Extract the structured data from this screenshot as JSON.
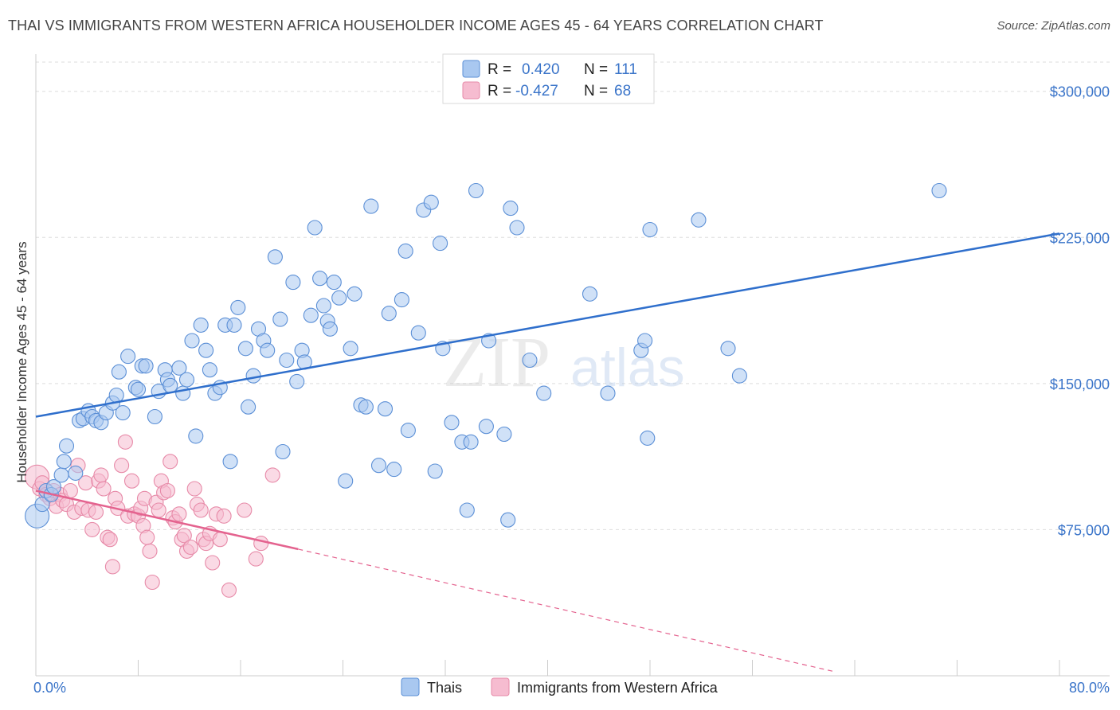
{
  "title": "THAI VS IMMIGRANTS FROM WESTERN AFRICA HOUSEHOLDER INCOME AGES 45 - 64 YEARS CORRELATION CHART",
  "source": "Source: ZipAtlas.com",
  "watermark": {
    "zip": "ZIP",
    "atlas": "atlas"
  },
  "colors": {
    "thais_fill": "#a9c8f0",
    "thais_stroke": "#5b8fd6",
    "thais_line": "#2f6fcc",
    "wafrica_fill": "#f6bcd0",
    "wafrica_stroke": "#e78aa8",
    "wafrica_line": "#e4638f",
    "tick_label": "#3a74c9",
    "grid": "#dddddd"
  },
  "legend": {
    "r_label": "R =",
    "n_label": "N =",
    "rows": [
      {
        "r": "0.420",
        "n": "111"
      },
      {
        "r": "-0.427",
        "n": "68"
      }
    ]
  },
  "bottom_legend": [
    "Thais",
    "Immigrants from Western Africa"
  ],
  "chart_data": {
    "type": "scatter",
    "title": "THAI VS IMMIGRANTS FROM WESTERN AFRICA HOUSEHOLDER INCOME AGES 45 - 64 YEARS CORRELATION CHART",
    "xlabel": "",
    "ylabel": "Householder Income Ages 45 - 64 years",
    "xlim": [
      0,
      80
    ],
    "ylim": [
      0,
      315000
    ],
    "x_tick_labels": [
      "0.0%",
      "80.0%"
    ],
    "y_ticks": [
      75000,
      150000,
      225000,
      300000
    ],
    "y_tick_labels": [
      "$75,000",
      "$150,000",
      "$225,000",
      "$300,000"
    ],
    "grid": "horizontal dashed",
    "legend_position": "top-center",
    "series": [
      {
        "name": "Thais",
        "trend": {
          "x": [
            0,
            80
          ],
          "y": [
            133000,
            227000
          ]
        },
        "points": [
          [
            0.1,
            82000
          ],
          [
            0.5,
            88000
          ],
          [
            0.8,
            95000
          ],
          [
            1.2,
            93000
          ],
          [
            1.4,
            97000
          ],
          [
            2.0,
            103000
          ],
          [
            2.2,
            110000
          ],
          [
            2.4,
            118000
          ],
          [
            3.1,
            104000
          ],
          [
            3.4,
            131000
          ],
          [
            3.7,
            132000
          ],
          [
            4.1,
            136000
          ],
          [
            4.4,
            133000
          ],
          [
            4.7,
            131000
          ],
          [
            5.1,
            130000
          ],
          [
            5.5,
            135000
          ],
          [
            6.0,
            140000
          ],
          [
            6.3,
            144000
          ],
          [
            6.5,
            156000
          ],
          [
            6.8,
            135000
          ],
          [
            7.2,
            164000
          ],
          [
            7.8,
            148000
          ],
          [
            8.0,
            147000
          ],
          [
            8.3,
            159000
          ],
          [
            8.6,
            159000
          ],
          [
            9.3,
            133000
          ],
          [
            9.6,
            146000
          ],
          [
            10.1,
            157000
          ],
          [
            10.3,
            152000
          ],
          [
            10.5,
            149000
          ],
          [
            11.2,
            158000
          ],
          [
            11.5,
            145000
          ],
          [
            11.8,
            152000
          ],
          [
            12.2,
            172000
          ],
          [
            12.5,
            123000
          ],
          [
            12.9,
            180000
          ],
          [
            13.3,
            167000
          ],
          [
            13.6,
            157000
          ],
          [
            14.0,
            145000
          ],
          [
            14.4,
            148000
          ],
          [
            14.8,
            180000
          ],
          [
            15.2,
            110000
          ],
          [
            15.5,
            180000
          ],
          [
            15.8,
            189000
          ],
          [
            16.4,
            168000
          ],
          [
            16.6,
            138000
          ],
          [
            17.0,
            154000
          ],
          [
            17.4,
            178000
          ],
          [
            17.8,
            172000
          ],
          [
            18.1,
            167000
          ],
          [
            18.7,
            215000
          ],
          [
            19.1,
            183000
          ],
          [
            19.3,
            115000
          ],
          [
            19.6,
            162000
          ],
          [
            20.1,
            202000
          ],
          [
            20.4,
            151000
          ],
          [
            20.8,
            167000
          ],
          [
            21.0,
            161000
          ],
          [
            21.5,
            185000
          ],
          [
            21.8,
            230000
          ],
          [
            22.2,
            204000
          ],
          [
            22.5,
            190000
          ],
          [
            22.8,
            182000
          ],
          [
            23.0,
            178000
          ],
          [
            23.3,
            202000
          ],
          [
            23.7,
            194000
          ],
          [
            24.2,
            100000
          ],
          [
            24.6,
            168000
          ],
          [
            24.9,
            196000
          ],
          [
            25.4,
            139000
          ],
          [
            25.8,
            138000
          ],
          [
            26.2,
            241000
          ],
          [
            26.8,
            108000
          ],
          [
            27.3,
            137000
          ],
          [
            27.6,
            186000
          ],
          [
            28.0,
            106000
          ],
          [
            28.6,
            193000
          ],
          [
            28.9,
            218000
          ],
          [
            29.1,
            126000
          ],
          [
            29.9,
            176000
          ],
          [
            30.3,
            239000
          ],
          [
            30.9,
            243000
          ],
          [
            31.2,
            105000
          ],
          [
            31.6,
            222000
          ],
          [
            31.8,
            168000
          ],
          [
            32.5,
            130000
          ],
          [
            33.3,
            120000
          ],
          [
            33.7,
            85000
          ],
          [
            34.0,
            120000
          ],
          [
            34.4,
            249000
          ],
          [
            35.2,
            128000
          ],
          [
            35.4,
            172000
          ],
          [
            36.6,
            124000
          ],
          [
            36.9,
            80000
          ],
          [
            37.1,
            240000
          ],
          [
            37.6,
            230000
          ],
          [
            38.6,
            162000
          ],
          [
            39.7,
            145000
          ],
          [
            43.3,
            196000
          ],
          [
            44.7,
            145000
          ],
          [
            47.3,
            167000
          ],
          [
            47.6,
            172000
          ],
          [
            47.8,
            122000
          ],
          [
            48.0,
            229000
          ],
          [
            51.8,
            234000
          ],
          [
            54.1,
            168000
          ],
          [
            55.0,
            154000
          ],
          [
            70.6,
            249000
          ]
        ]
      },
      {
        "name": "Immigrants from Western Africa",
        "trend": {
          "x": [
            0,
            20.5
          ],
          "y": [
            95000,
            65000
          ]
        },
        "trend_dashed": {
          "x": [
            20.5,
            62.5
          ],
          "y": [
            65000,
            2000
          ]
        },
        "points": [
          [
            0.1,
            102000
          ],
          [
            0.3,
            96000
          ],
          [
            0.5,
            99000
          ],
          [
            0.8,
            93000
          ],
          [
            1.1,
            91000
          ],
          [
            1.4,
            95000
          ],
          [
            1.6,
            87000
          ],
          [
            1.9,
            93000
          ],
          [
            2.1,
            90000
          ],
          [
            2.4,
            88000
          ],
          [
            2.7,
            95000
          ],
          [
            3.0,
            84000
          ],
          [
            3.3,
            108000
          ],
          [
            3.6,
            86000
          ],
          [
            3.9,
            99000
          ],
          [
            4.1,
            85000
          ],
          [
            4.4,
            75000
          ],
          [
            4.7,
            84000
          ],
          [
            4.9,
            100000
          ],
          [
            5.1,
            103000
          ],
          [
            5.3,
            96000
          ],
          [
            5.6,
            71000
          ],
          [
            5.8,
            70000
          ],
          [
            6.0,
            56000
          ],
          [
            6.2,
            91000
          ],
          [
            6.4,
            86000
          ],
          [
            6.7,
            108000
          ],
          [
            7.0,
            120000
          ],
          [
            7.2,
            82000
          ],
          [
            7.5,
            100000
          ],
          [
            7.7,
            83000
          ],
          [
            8.0,
            82000
          ],
          [
            8.2,
            86000
          ],
          [
            8.4,
            77000
          ],
          [
            8.5,
            91000
          ],
          [
            8.7,
            71000
          ],
          [
            8.9,
            64000
          ],
          [
            9.1,
            48000
          ],
          [
            9.4,
            89000
          ],
          [
            9.6,
            85000
          ],
          [
            9.8,
            100000
          ],
          [
            10.0,
            94000
          ],
          [
            10.3,
            95000
          ],
          [
            10.5,
            110000
          ],
          [
            10.7,
            81000
          ],
          [
            10.9,
            79000
          ],
          [
            11.2,
            83000
          ],
          [
            11.4,
            70000
          ],
          [
            11.6,
            72000
          ],
          [
            11.8,
            64000
          ],
          [
            12.1,
            66000
          ],
          [
            12.4,
            96000
          ],
          [
            12.6,
            88000
          ],
          [
            12.9,
            85000
          ],
          [
            13.1,
            70000
          ],
          [
            13.3,
            68000
          ],
          [
            13.6,
            73000
          ],
          [
            13.8,
            58000
          ],
          [
            14.1,
            83000
          ],
          [
            14.4,
            70000
          ],
          [
            14.7,
            82000
          ],
          [
            15.1,
            44000
          ],
          [
            16.3,
            85000
          ],
          [
            17.2,
            60000
          ],
          [
            17.6,
            68000
          ],
          [
            18.5,
            103000
          ]
        ]
      }
    ]
  }
}
